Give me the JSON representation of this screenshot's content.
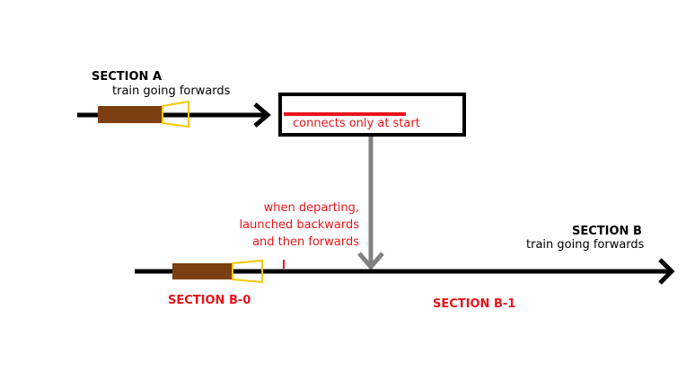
{
  "colors": {
    "track": "#000000",
    "train_body": "#7b3f12",
    "train_cone": "#f5c800",
    "highlight": "#e8141b",
    "connector_arrow": "#808080",
    "background": "#ffffff"
  },
  "section_a": {
    "title": "SECTION A",
    "subtitle": "train going forwards"
  },
  "box": {
    "label": "connects only at start"
  },
  "connector_note": {
    "line1": "when departing,",
    "line2": "launched backwards",
    "line3": "and then forwards"
  },
  "section_b": {
    "title": "SECTION B",
    "subtitle": "train going forwards"
  },
  "section_b0": {
    "label": "SECTION B-0"
  },
  "section_b1": {
    "label": "SECTION B-1"
  }
}
